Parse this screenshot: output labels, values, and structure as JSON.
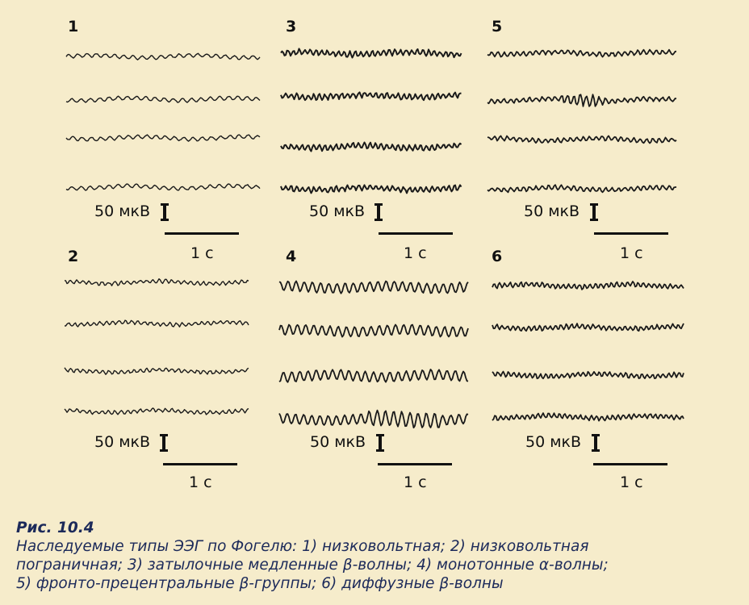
{
  "panels": [
    {
      "number": "1",
      "amplitude_label": "50 мкВ",
      "time_label": "1 с",
      "style": "low_voltage"
    },
    {
      "number": "3",
      "amplitude_label": "50 мкВ",
      "time_label": "1 с",
      "style": "occipital_slow_beta"
    },
    {
      "number": "5",
      "amplitude_label": "50 мкВ",
      "time_label": "1 с",
      "style": "fronto_precentral_beta"
    },
    {
      "number": "2",
      "amplitude_label": "50 мкВ",
      "time_label": "1 с",
      "style": "low_voltage_borderline"
    },
    {
      "number": "4",
      "amplitude_label": "50 мкВ",
      "time_label": "1 с",
      "style": "monotonous_alpha"
    },
    {
      "number": "6",
      "amplitude_label": "50 мкВ",
      "time_label": "1 с",
      "style": "diffuse_beta"
    }
  ],
  "caption": {
    "title": "Рис. 10.4",
    "line1": "Наследуемые типы ЭЭГ по Фогелю: 1) низковольтная; 2) низковольтная",
    "line2": "пограничная; 3) затылочные медленные β-волны; 4) монотонные α-волны;",
    "line3": "5) фронто-прецентральные β-группы; 6) диффузные β-волны"
  }
}
